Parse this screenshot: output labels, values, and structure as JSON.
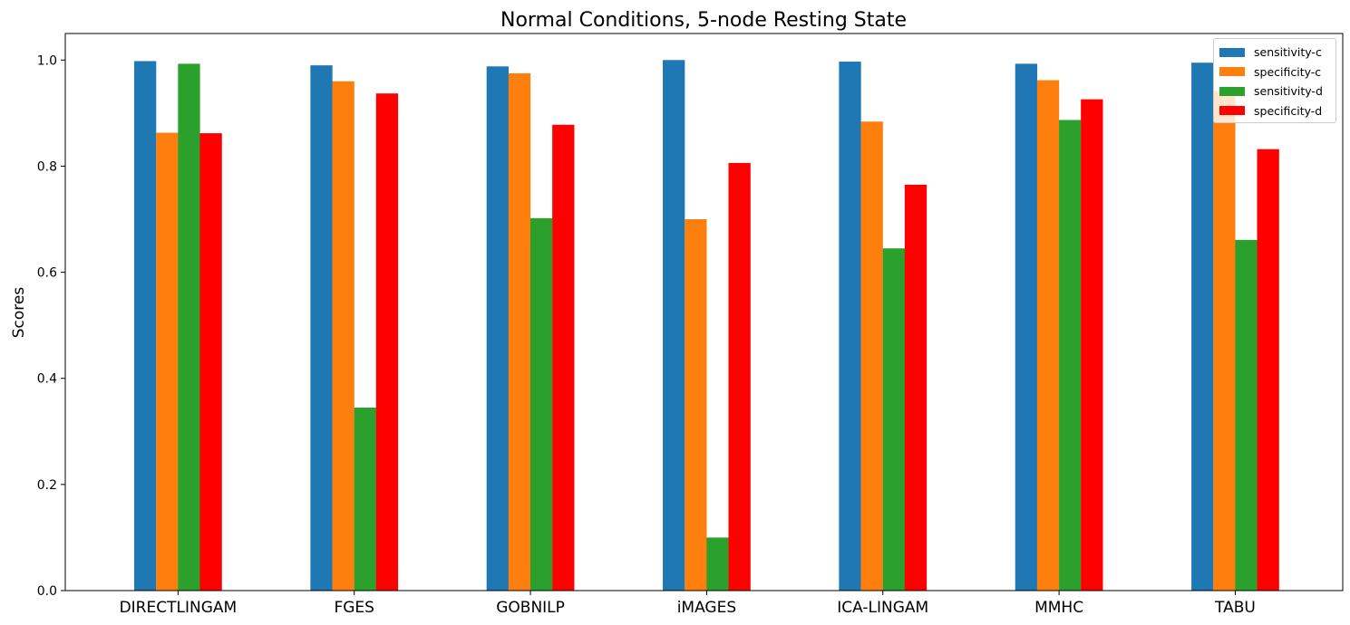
{
  "chart_data": {
    "type": "bar",
    "title": "Normal Conditions, 5-node Resting State",
    "xlabel": "",
    "ylabel": "Scores",
    "ylim": [
      0,
      1.05
    ],
    "yticks": [
      "0.0",
      "0.2",
      "0.4",
      "0.6",
      "0.8",
      "1.0"
    ],
    "categories": [
      "DIRECTLINGAM",
      "FGES",
      "GOBNILP",
      "iMAGES",
      "ICA-LINGAM",
      "MMHC",
      "TABU"
    ],
    "legend_position": "top-right",
    "series": [
      {
        "name": "sensitivity-c",
        "color": "#1f77b4",
        "values": [
          0.998,
          0.99,
          0.988,
          1.0,
          0.997,
          0.993,
          0.995
        ]
      },
      {
        "name": "specificity-c",
        "color": "#ff7f0e",
        "values": [
          0.863,
          0.96,
          0.975,
          0.7,
          0.884,
          0.962,
          0.942
        ]
      },
      {
        "name": "sensitivity-d",
        "color": "#2ca02c",
        "values": [
          0.993,
          0.345,
          0.702,
          0.1,
          0.645,
          0.887,
          0.661
        ]
      },
      {
        "name": "specificity-d",
        "color": "#ff0000",
        "values": [
          0.862,
          0.937,
          0.878,
          0.806,
          0.765,
          0.926,
          0.832
        ]
      }
    ]
  }
}
